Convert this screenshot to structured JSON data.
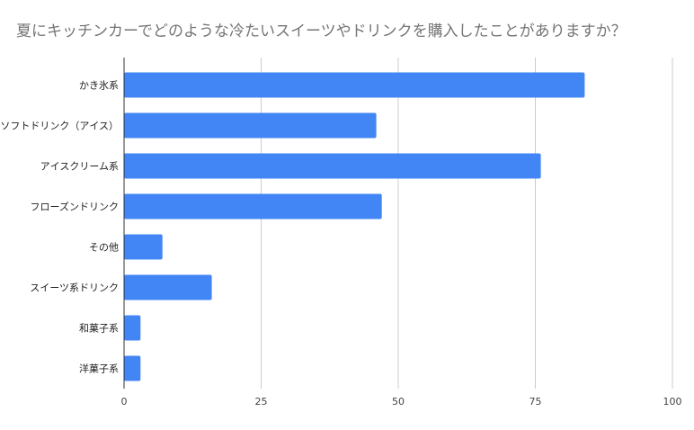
{
  "chart_data": {
    "type": "bar",
    "orientation": "horizontal",
    "title": "夏にキッチンカーでどのような冷たいスイーツやドリンクを購入したことがありますか？",
    "categories": [
      "かき氷系",
      "ソフトドリンク（アイス）",
      "アイスクリーム系",
      "フローズンドリンク",
      "その他",
      "スイーツ系ドリンク",
      "和菓子系",
      "洋菓子系"
    ],
    "values": [
      84,
      46,
      76,
      47,
      7,
      16,
      3,
      3
    ],
    "xlim": [
      0,
      100
    ],
    "x_ticks": [
      0,
      25,
      50,
      75,
      100
    ],
    "grid": true,
    "legend": "none",
    "bar_color": "#4285F4",
    "grid_color": "#cccccc",
    "axis_color": "#333333"
  }
}
